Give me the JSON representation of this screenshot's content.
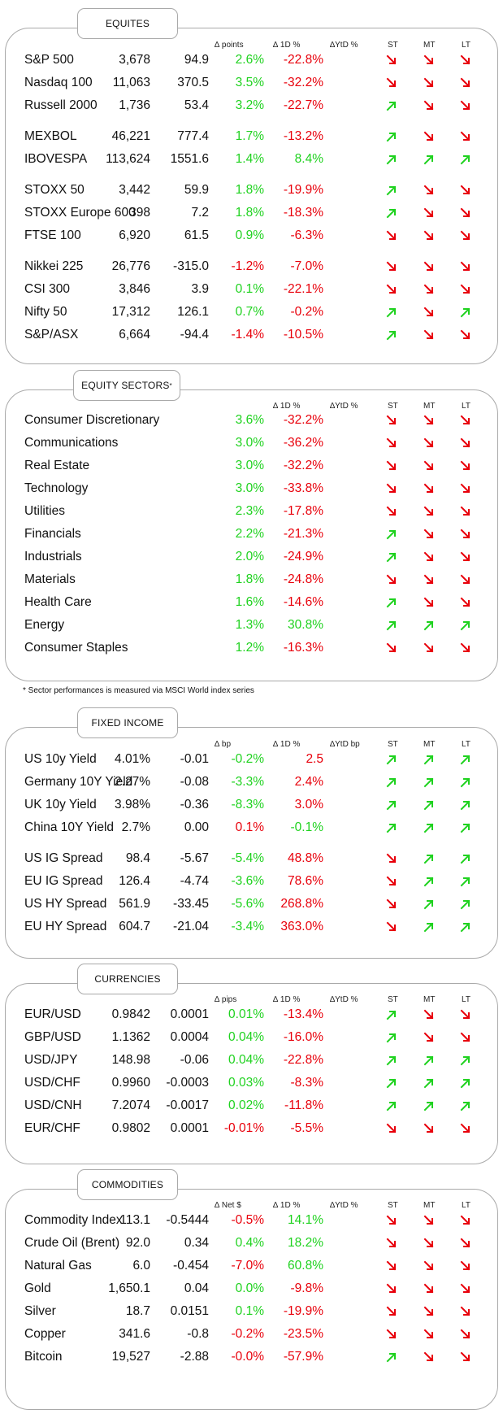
{
  "colors": {
    "positive": "#1fd21f",
    "negative": "#e8000b",
    "border": "#a9a9a9"
  },
  "icons": {
    "up": "arrow-up-right-icon",
    "down": "arrow-down-right-icon"
  },
  "sections": [
    {
      "title": "EQUITES",
      "sup": "",
      "headers": {
        "c1": "",
        "c2": "∆ points",
        "c3": "∆ 1D %",
        "c4": "∆YtD %",
        "st": "ST",
        "mt": "MT",
        "lt": "LT"
      },
      "rows": [
        {
          "name": "S&P 500",
          "v1": "3,678",
          "v2": "94.9",
          "d1": "2.6%",
          "ytd": "-22.8%",
          "st": "down",
          "mt": "down",
          "lt": "down"
        },
        {
          "name": "Nasdaq 100",
          "v1": "11,063",
          "v2": "370.5",
          "d1": "3.5%",
          "ytd": "-32.2%",
          "st": "down",
          "mt": "down",
          "lt": "down"
        },
        {
          "name": "Russell 2000",
          "v1": "1,736",
          "v2": "53.4",
          "d1": "3.2%",
          "ytd": "-22.7%",
          "st": "up",
          "mt": "down",
          "lt": "down"
        },
        {
          "name": "MEXBOL",
          "v1": "46,221",
          "v2": "777.4",
          "d1": "1.7%",
          "ytd": "-13.2%",
          "st": "up",
          "mt": "down",
          "lt": "down"
        },
        {
          "name": "IBOVESPA",
          "v1": "113,624",
          "v2": "1551.6",
          "d1": "1.4%",
          "ytd": "8.4%",
          "st": "up",
          "mt": "up",
          "lt": "up"
        },
        {
          "name": "STOXX 50",
          "v1": "3,442",
          "v2": "59.9",
          "d1": "1.8%",
          "ytd": "-19.9%",
          "st": "up",
          "mt": "down",
          "lt": "down"
        },
        {
          "name": "STOXX Europe 600",
          "v1": "398",
          "v2": "7.2",
          "d1": "1.8%",
          "ytd": "-18.3%",
          "st": "up",
          "mt": "down",
          "lt": "down"
        },
        {
          "name": "FTSE 100",
          "v1": "6,920",
          "v2": "61.5",
          "d1": "0.9%",
          "ytd": "-6.3%",
          "st": "down",
          "mt": "down",
          "lt": "down"
        },
        {
          "name": "Nikkei 225",
          "v1": "26,776",
          "v2": "-315.0",
          "d1": "-1.2%",
          "ytd": "-7.0%",
          "st": "down",
          "mt": "down",
          "lt": "down"
        },
        {
          "name": "CSI 300",
          "v1": "3,846",
          "v2": "3.9",
          "d1": "0.1%",
          "ytd": "-22.1%",
          "st": "down",
          "mt": "down",
          "lt": "down"
        },
        {
          "name": "Nifty  50",
          "v1": "17,312",
          "v2": "126.1",
          "d1": "0.7%",
          "ytd": "-0.2%",
          "st": "up",
          "mt": "down",
          "lt": "up"
        },
        {
          "name": "S&P/ASX",
          "v1": "6,664",
          "v2": "-94.4",
          "d1": "-1.4%",
          "ytd": "-10.5%",
          "st": "up",
          "mt": "down",
          "lt": "down"
        }
      ]
    },
    {
      "title": "EQUITY SECTORS",
      "sup": "*",
      "headers": {
        "c1": "",
        "c2": "",
        "c3": "∆ 1D %",
        "c4": "∆YtD %",
        "st": "ST",
        "mt": "MT",
        "lt": "LT"
      },
      "rows": [
        {
          "name": "Consumer Discretionary",
          "v1": "",
          "v2": "",
          "d1": "3.6%",
          "ytd": "-32.2%",
          "st": "down",
          "mt": "down",
          "lt": "down"
        },
        {
          "name": "Communications",
          "v1": "",
          "v2": "",
          "d1": "3.0%",
          "ytd": "-36.2%",
          "st": "down",
          "mt": "down",
          "lt": "down"
        },
        {
          "name": "Real Estate",
          "v1": "",
          "v2": "",
          "d1": "3.0%",
          "ytd": "-32.2%",
          "st": "down",
          "mt": "down",
          "lt": "down"
        },
        {
          "name": "Technology",
          "v1": "",
          "v2": "",
          "d1": "3.0%",
          "ytd": "-33.8%",
          "st": "down",
          "mt": "down",
          "lt": "down"
        },
        {
          "name": "Utilities",
          "v1": "",
          "v2": "",
          "d1": "2.3%",
          "ytd": "-17.8%",
          "st": "down",
          "mt": "down",
          "lt": "down"
        },
        {
          "name": "Financials",
          "v1": "",
          "v2": "",
          "d1": "2.2%",
          "ytd": "-21.3%",
          "st": "up",
          "mt": "down",
          "lt": "down"
        },
        {
          "name": "Industrials",
          "v1": "",
          "v2": "",
          "d1": "2.0%",
          "ytd": "-24.9%",
          "st": "up",
          "mt": "down",
          "lt": "down"
        },
        {
          "name": "Materials",
          "v1": "",
          "v2": "",
          "d1": "1.8%",
          "ytd": "-24.8%",
          "st": "down",
          "mt": "down",
          "lt": "down"
        },
        {
          "name": "Health Care",
          "v1": "",
          "v2": "",
          "d1": "1.6%",
          "ytd": "-14.6%",
          "st": "up",
          "mt": "down",
          "lt": "down"
        },
        {
          "name": "Energy",
          "v1": "",
          "v2": "",
          "d1": "1.3%",
          "ytd": "30.8%",
          "st": "up",
          "mt": "up",
          "lt": "up"
        },
        {
          "name": "Consumer Staples",
          "v1": "",
          "v2": "",
          "d1": "1.2%",
          "ytd": "-16.3%",
          "st": "down",
          "mt": "down",
          "lt": "down"
        }
      ]
    },
    {
      "title": "FIXED INCOME",
      "sup": "",
      "headers": {
        "c1": "",
        "c2": "∆ bp",
        "c3": "∆ 1D %",
        "c4": "∆YtD bp",
        "st": "ST",
        "mt": "MT",
        "lt": "LT"
      },
      "rows": [
        {
          "name": "US 10y Yield",
          "v1": "4.01%",
          "v2": "-0.01",
          "d1": "-0.2%",
          "ytd": "2.5",
          "st": "up",
          "mt": "up",
          "lt": "up"
        },
        {
          "name": "Germany 10Y Yield",
          "v1": "2.27%",
          "v2": "-0.08",
          "d1": "-3.3%",
          "ytd": "2.4%",
          "st": "up",
          "mt": "up",
          "lt": "up"
        },
        {
          "name": "UK 10y Yield",
          "v1": "3.98%",
          "v2": "-0.36",
          "d1": "-8.3%",
          "ytd": "3.0%",
          "st": "up",
          "mt": "up",
          "lt": "up"
        },
        {
          "name": "China 10Y Yield",
          "v1": "2.7%",
          "v2": "0.00",
          "d1": "0.1%",
          "ytd": "-0.1%",
          "st": "up",
          "mt": "up",
          "lt": "up"
        },
        {
          "name": "US IG Spread",
          "v1": "98.4",
          "v2": "-5.67",
          "d1": "-5.4%",
          "ytd": "48.8%",
          "st": "down",
          "mt": "up",
          "lt": "up"
        },
        {
          "name": "EU IG Spread",
          "v1": "126.4",
          "v2": "-4.74",
          "d1": "-3.6%",
          "ytd": "78.6%",
          "st": "down",
          "mt": "up",
          "lt": "up"
        },
        {
          "name": "US HY Spread",
          "v1": "561.9",
          "v2": "-33.45",
          "d1": "-5.6%",
          "ytd": "268.8%",
          "st": "down",
          "mt": "up",
          "lt": "up"
        },
        {
          "name": "EU HY Spread",
          "v1": "604.7",
          "v2": "-21.04",
          "d1": "-3.4%",
          "ytd": "363.0%",
          "st": "down",
          "mt": "up",
          "lt": "up"
        }
      ]
    },
    {
      "title": "CURRENCIES",
      "sup": "",
      "headers": {
        "c1": "",
        "c2": "∆ pips",
        "c3": "∆ 1D %",
        "c4": "∆YtD %",
        "st": "ST",
        "mt": "MT",
        "lt": "LT"
      },
      "rows": [
        {
          "name": "EUR/USD",
          "v1": "0.9842",
          "v2": "0.0001",
          "d1": "0.01%",
          "ytd": "-13.4%",
          "st": "up",
          "mt": "down",
          "lt": "down"
        },
        {
          "name": "GBP/USD",
          "v1": "1.1362",
          "v2": "0.0004",
          "d1": "0.04%",
          "ytd": "-16.0%",
          "st": "up",
          "mt": "down",
          "lt": "down"
        },
        {
          "name": "USD/JPY",
          "v1": "148.98",
          "v2": "-0.06",
          "d1": "0.04%",
          "ytd": "-22.8%",
          "st": "up",
          "mt": "up",
          "lt": "up"
        },
        {
          "name": "USD/CHF",
          "v1": "0.9960",
          "v2": "-0.0003",
          "d1": "0.03%",
          "ytd": "-8.3%",
          "st": "up",
          "mt": "up",
          "lt": "up"
        },
        {
          "name": "USD/CNH",
          "v1": "7.2074",
          "v2": "-0.0017",
          "d1": "0.02%",
          "ytd": "-11.8%",
          "st": "up",
          "mt": "up",
          "lt": "up"
        },
        {
          "name": "EUR/CHF",
          "v1": "0.9802",
          "v2": "0.0001",
          "d1": "-0.01%",
          "ytd": "-5.5%",
          "st": "down",
          "mt": "down",
          "lt": "down"
        }
      ]
    },
    {
      "title": "COMMODITIES",
      "sup": "",
      "headers": {
        "c1": "",
        "c2": "∆ Net $",
        "c3": "∆ 1D %",
        "c4": "∆YtD %",
        "st": "ST",
        "mt": "MT",
        "lt": "LT"
      },
      "rows": [
        {
          "name": "Commodity Index",
          "v1": "113.1",
          "v2": "-0.5444",
          "d1": "-0.5%",
          "ytd": "14.1%",
          "st": "down",
          "mt": "down",
          "lt": "down"
        },
        {
          "name": "Crude Oil (Brent)",
          "v1": "92.0",
          "v2": "0.34",
          "d1": "0.4%",
          "ytd": "18.2%",
          "st": "down",
          "mt": "down",
          "lt": "down"
        },
        {
          "name": "Natural Gas",
          "v1": "6.0",
          "v2": "-0.454",
          "d1": "-7.0%",
          "ytd": "60.8%",
          "st": "down",
          "mt": "down",
          "lt": "down"
        },
        {
          "name": "Gold",
          "v1": "1,650.1",
          "v2": "0.04",
          "d1": "0.0%",
          "ytd": "-9.8%",
          "st": "down",
          "mt": "down",
          "lt": "down"
        },
        {
          "name": "Silver",
          "v1": "18.7",
          "v2": "0.0151",
          "d1": "0.1%",
          "ytd": "-19.9%",
          "st": "down",
          "mt": "down",
          "lt": "down"
        },
        {
          "name": "Copper",
          "v1": "341.6",
          "v2": "-0.8",
          "d1": "-0.2%",
          "ytd": "-23.5%",
          "st": "down",
          "mt": "down",
          "lt": "down"
        },
        {
          "name": "Bitcoin",
          "v1": "19,527",
          "v2": "-2.88",
          "d1": "-0.0%",
          "ytd": "-57.9%",
          "st": "up",
          "mt": "down",
          "lt": "down"
        }
      ]
    }
  ],
  "footnote": "* Sector performances is measured via MSCI World index series"
}
